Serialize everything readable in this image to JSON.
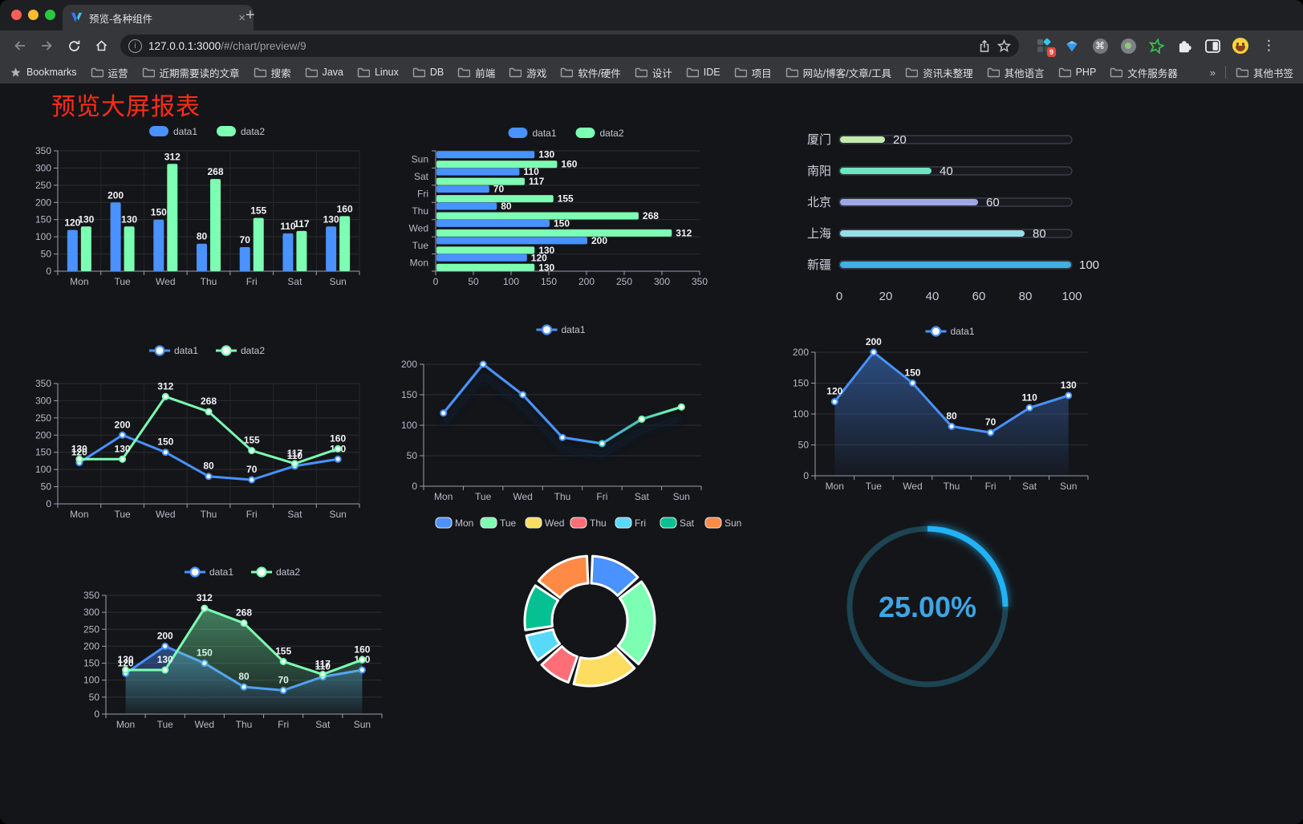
{
  "browser": {
    "tab_title": "预览-各种组件",
    "url_host": "127.0.0.1:3000",
    "url_path": "/#/chart/preview/9",
    "extension_badge": "9",
    "bookmarks_label": "Bookmarks",
    "bookmarks": [
      "运营",
      "近期需要读的文章",
      "搜索",
      "Java",
      "Linux",
      "DB",
      "前端",
      "游戏",
      "软件/硬件",
      "设计",
      "IDE",
      "项目",
      "网站/博客/文章/工具",
      "资讯未整理",
      "其他语言",
      "PHP",
      "文件服务器"
    ],
    "bookmarks_overflow": "»",
    "other_bookmarks": "其他书签"
  },
  "icons": {
    "close": "×",
    "new_tab": "+",
    "kebab": "⋮",
    "command": "⌘",
    "info": "i"
  },
  "page": {
    "title": "预览大屏报表",
    "title_color": "#ff2d17"
  },
  "chart_data": [
    {
      "id": "grouped-bar",
      "type": "bar",
      "categories": [
        "Mon",
        "Tue",
        "Wed",
        "Thu",
        "Fri",
        "Sat",
        "Sun"
      ],
      "series": [
        {
          "name": "data1",
          "color": "#4992ff",
          "values": [
            120,
            200,
            150,
            80,
            70,
            110,
            130
          ]
        },
        {
          "name": "data2",
          "color": "#7cffb2",
          "values": [
            130,
            130,
            312,
            268,
            155,
            117,
            160
          ]
        }
      ],
      "ylim": [
        0,
        350
      ],
      "yticks": [
        0,
        50,
        100,
        150,
        200,
        250,
        300,
        350
      ],
      "legend_position": "top",
      "show_labels": true
    },
    {
      "id": "horizontal-bar",
      "type": "hbar",
      "categories": [
        "Mon",
        "Tue",
        "Wed",
        "Thu",
        "Fri",
        "Sat",
        "Sun"
      ],
      "series": [
        {
          "name": "data1",
          "color": "#4992ff",
          "values": [
            120,
            200,
            150,
            80,
            70,
            110,
            130
          ]
        },
        {
          "name": "data2",
          "color": "#7cffb2",
          "values": [
            130,
            130,
            312,
            268,
            155,
            117,
            160
          ]
        }
      ],
      "xlim": [
        0,
        350
      ],
      "xticks": [
        0,
        50,
        100,
        150,
        200,
        250,
        300,
        350
      ],
      "legend_position": "top",
      "show_labels": true
    },
    {
      "id": "progress-bars",
      "type": "progress",
      "max": 100,
      "xticks": [
        0,
        20,
        40,
        60,
        80,
        100
      ],
      "items": [
        {
          "label": "厦门",
          "value": 20,
          "color": "#c4ebad"
        },
        {
          "label": "南阳",
          "value": 40,
          "color": "#6be6c1"
        },
        {
          "label": "北京",
          "value": 60,
          "color": "#a0a7e6"
        },
        {
          "label": "上海",
          "value": 80,
          "color": "#96dee8"
        },
        {
          "label": "新疆",
          "value": 100,
          "color": "#3fb1e3"
        }
      ]
    },
    {
      "id": "line-two-series",
      "type": "line",
      "categories": [
        "Mon",
        "Tue",
        "Wed",
        "Thu",
        "Fri",
        "Sat",
        "Sun"
      ],
      "series": [
        {
          "name": "data1",
          "color": "#4992ff",
          "values": [
            120,
            200,
            150,
            80,
            70,
            110,
            130
          ]
        },
        {
          "name": "data2",
          "color": "#7cffb2",
          "values": [
            130,
            130,
            312,
            268,
            155,
            117,
            160
          ]
        }
      ],
      "ylim": [
        0,
        350
      ],
      "yticks": [
        0,
        50,
        100,
        150,
        200,
        250,
        300,
        350
      ],
      "legend_position": "top",
      "show_labels": true
    },
    {
      "id": "gradient-line",
      "type": "line_gradient",
      "categories": [
        "Mon",
        "Tue",
        "Wed",
        "Thu",
        "Fri",
        "Sat",
        "Sun"
      ],
      "series": [
        {
          "name": "data1",
          "gradient": [
            "#4992ff",
            "#7cffb2"
          ],
          "values": [
            120,
            200,
            150,
            80,
            70,
            110,
            130
          ]
        }
      ],
      "ylim": [
        0,
        200
      ],
      "yticks": [
        0,
        50,
        100,
        150,
        200
      ],
      "legend_position": "top",
      "show_labels": false
    },
    {
      "id": "area-single",
      "type": "area",
      "categories": [
        "Mon",
        "Tue",
        "Wed",
        "Thu",
        "Fri",
        "Sat",
        "Sun"
      ],
      "series": [
        {
          "name": "data1",
          "color": "#4992ff",
          "values": [
            120,
            200,
            150,
            80,
            70,
            110,
            130
          ]
        }
      ],
      "ylim": [
        0,
        200
      ],
      "yticks": [
        0,
        50,
        100,
        150,
        200
      ],
      "legend_position": "top",
      "show_labels": true
    },
    {
      "id": "area-double",
      "type": "area",
      "categories": [
        "Mon",
        "Tue",
        "Wed",
        "Thu",
        "Fri",
        "Sat",
        "Sun"
      ],
      "series": [
        {
          "name": "data1",
          "color": "#4992ff",
          "values": [
            120,
            200,
            150,
            80,
            70,
            110,
            130
          ]
        },
        {
          "name": "data2",
          "color": "#7cffb2",
          "values": [
            130,
            130,
            312,
            268,
            155,
            117,
            160
          ]
        }
      ],
      "ylim": [
        0,
        350
      ],
      "yticks": [
        0,
        50,
        100,
        150,
        200,
        250,
        300,
        350
      ],
      "legend_position": "top",
      "show_labels": true
    },
    {
      "id": "donut",
      "type": "pie",
      "items": [
        {
          "name": "Mon",
          "value": 120,
          "color": "#4992ff"
        },
        {
          "name": "Tue",
          "value": 200,
          "color": "#7cffb2"
        },
        {
          "name": "Wed",
          "value": 150,
          "color": "#fddd60"
        },
        {
          "name": "Thu",
          "value": 80,
          "color": "#ff6e76"
        },
        {
          "name": "Fri",
          "value": 70,
          "color": "#58d9f9"
        },
        {
          "name": "Sat",
          "value": 110,
          "color": "#05c091"
        },
        {
          "name": "Sun",
          "value": 130,
          "color": "#ff8a45"
        }
      ],
      "legend_position": "top"
    },
    {
      "id": "gauge",
      "type": "gauge",
      "value": 25,
      "max": 100,
      "label": "25.00%",
      "color": "#23b2f6",
      "track_color": "#1d4452",
      "text_color": "#3da5e5"
    }
  ]
}
